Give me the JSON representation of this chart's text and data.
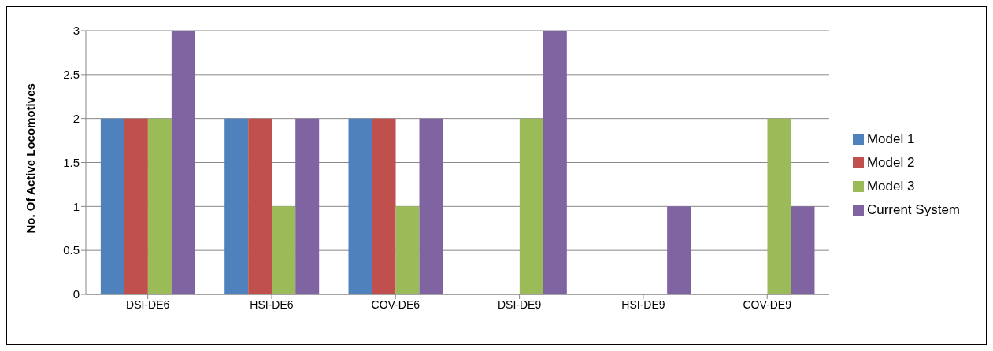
{
  "chart_data": {
    "type": "bar",
    "ylabel": "No. Of Active Locomotives",
    "categories": [
      "DSI-DE6",
      "HSI-DE6",
      "COV-DE6",
      "DSI-DE9",
      "HSI-DE9",
      "COV-DE9"
    ],
    "series": [
      {
        "name": "Model 1",
        "color": "#4f81bd",
        "values": [
          2,
          2,
          2,
          0,
          0,
          0
        ]
      },
      {
        "name": "Model 2",
        "color": "#c0504d",
        "values": [
          2,
          2,
          2,
          0,
          0,
          0
        ]
      },
      {
        "name": "Model 3",
        "color": "#9bbb59",
        "values": [
          2,
          1,
          1,
          2,
          0,
          2
        ]
      },
      {
        "name": "Current System",
        "color": "#8064a2",
        "values": [
          3,
          2,
          2,
          3,
          1,
          1
        ]
      }
    ],
    "ylim": [
      0,
      3
    ],
    "yticks": [
      0,
      0.5,
      1,
      1.5,
      2,
      2.5,
      3
    ],
    "grid": "y",
    "legend": "right"
  }
}
